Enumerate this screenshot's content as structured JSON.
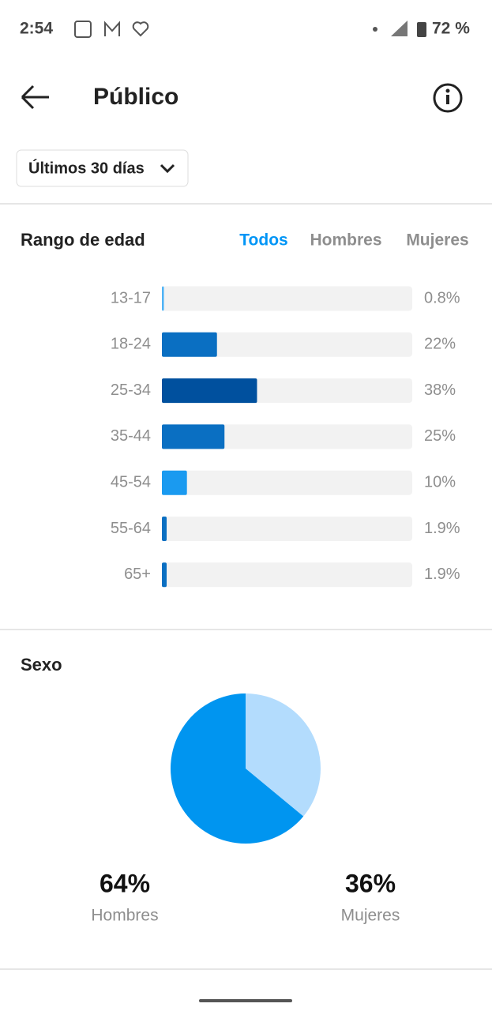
{
  "status_bar": {
    "time": "2:54",
    "battery": "72 %"
  },
  "header": {
    "title": "Público"
  },
  "filter": {
    "label": "Últimos 30 días"
  },
  "age": {
    "title": "Rango de edad",
    "tabs": [
      "Todos",
      "Hombres",
      "Mujeres"
    ],
    "active_tab": 0,
    "chart_data": {
      "type": "bar",
      "categories": [
        "13-17",
        "18-24",
        "25-34",
        "35-44",
        "45-54",
        "55-64",
        "65+"
      ],
      "values": [
        0.8,
        22,
        38,
        25,
        10,
        1.9,
        1.9
      ],
      "value_labels": [
        "0.8%",
        "22%",
        "38%",
        "25%",
        "10%",
        "1.9%",
        "1.9%"
      ],
      "colors": [
        "#4fb3f6",
        "#0a6fc2",
        "#00509e",
        "#0a6fc2",
        "#1a9af0",
        "#0a6fc2",
        "#0a6fc2"
      ],
      "xlim": [
        0,
        100
      ]
    }
  },
  "sex": {
    "title": "Sexo",
    "chart_data": {
      "type": "pie",
      "categories": [
        "Hombres",
        "Mujeres"
      ],
      "values": [
        64,
        36
      ],
      "value_labels": [
        "64%",
        "36%"
      ],
      "colors": [
        "#0095f0",
        "#b3dcfd"
      ]
    }
  }
}
